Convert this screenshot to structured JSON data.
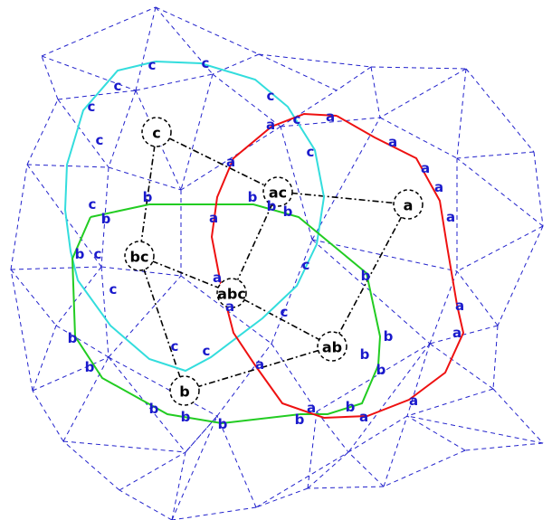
{
  "colors": {
    "mesh": "#2222cc",
    "region_a": "#ee1111",
    "region_b": "#22cc22",
    "region_c": "#33dddd",
    "dual": "#000000",
    "label": "#1a1acc",
    "node_label": "#000000",
    "background": "#ffffff"
  },
  "nodes": [
    {
      "id": "c",
      "label": "c"
    },
    {
      "id": "ac",
      "label": "ac"
    },
    {
      "id": "a",
      "label": "a"
    },
    {
      "id": "bc",
      "label": "bc"
    },
    {
      "id": "abc",
      "label": "abc"
    },
    {
      "id": "ab",
      "label": "ab"
    },
    {
      "id": "b",
      "label": "b"
    }
  ],
  "dual_edges": [
    [
      "c",
      "ac"
    ],
    [
      "c",
      "bc"
    ],
    [
      "ac",
      "a"
    ],
    [
      "ac",
      "abc"
    ],
    [
      "bc",
      "abc"
    ],
    [
      "bc",
      "b"
    ],
    [
      "abc",
      "ab"
    ],
    [
      "a",
      "ab"
    ],
    [
      "ab",
      "b"
    ]
  ],
  "region_labels": {
    "a": "a",
    "b": "b",
    "c": "c"
  }
}
